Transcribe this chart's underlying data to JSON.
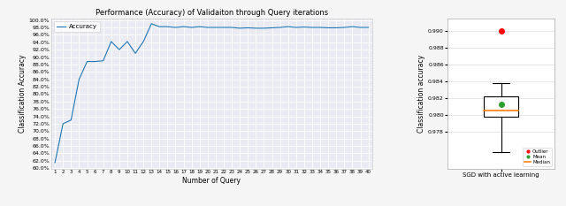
{
  "title": "Performance (Accuracy) of Validaiton through Query iterations",
  "xlabel_left": "Number of Query",
  "ylabel_left": "Classification Accuracy",
  "ylabel_right": "Classification accuracy",
  "xlabel_right": "SGD with active learning",
  "query_values": [
    1,
    2,
    3,
    4,
    5,
    6,
    7,
    8,
    9,
    10,
    11,
    12,
    13,
    14,
    15,
    16,
    17,
    18,
    19,
    20,
    21,
    22,
    23,
    24,
    25,
    26,
    27,
    28,
    29,
    30,
    31,
    32,
    33,
    34,
    35,
    36,
    37,
    38,
    39,
    40
  ],
  "accuracy_values": [
    0.615,
    0.72,
    0.73,
    0.84,
    0.888,
    0.888,
    0.89,
    0.942,
    0.92,
    0.942,
    0.91,
    0.942,
    0.99,
    0.982,
    0.982,
    0.98,
    0.982,
    0.98,
    0.982,
    0.98,
    0.98,
    0.98,
    0.98,
    0.978,
    0.979,
    0.978,
    0.978,
    0.979,
    0.98,
    0.982,
    0.98,
    0.981,
    0.98,
    0.98,
    0.979,
    0.979,
    0.98,
    0.982,
    0.98,
    0.98
  ],
  "line_color": "#1f77b4",
  "ylim_left": [
    0.598,
    1.004
  ],
  "yticks_left": [
    0.6,
    0.62,
    0.64,
    0.66,
    0.68,
    0.7,
    0.72,
    0.74,
    0.76,
    0.78,
    0.8,
    0.82,
    0.84,
    0.86,
    0.88,
    0.9,
    0.92,
    0.94,
    0.96,
    0.98,
    1.0
  ],
  "box_data": {
    "whisker_low": 0.9755,
    "q1": 0.9798,
    "median": 0.9805,
    "q3": 0.9822,
    "whisker_high": 0.9838,
    "mean": 0.9812,
    "outlier": 0.99
  },
  "box_color": "white",
  "box_edge_color": "black",
  "whisker_color": "black",
  "median_color": "#ff7f0e",
  "mean_color": "#2ca02c",
  "outlier_color": "red",
  "ylim_right": [
    0.9735,
    0.9915
  ],
  "yticks_right": [
    0.978,
    0.98,
    0.982,
    0.984,
    0.986,
    0.988,
    0.99
  ],
  "plot_bg_color": "#eaeaf2",
  "fig_bg_color": "#f5f5f5",
  "grid_color": "white"
}
